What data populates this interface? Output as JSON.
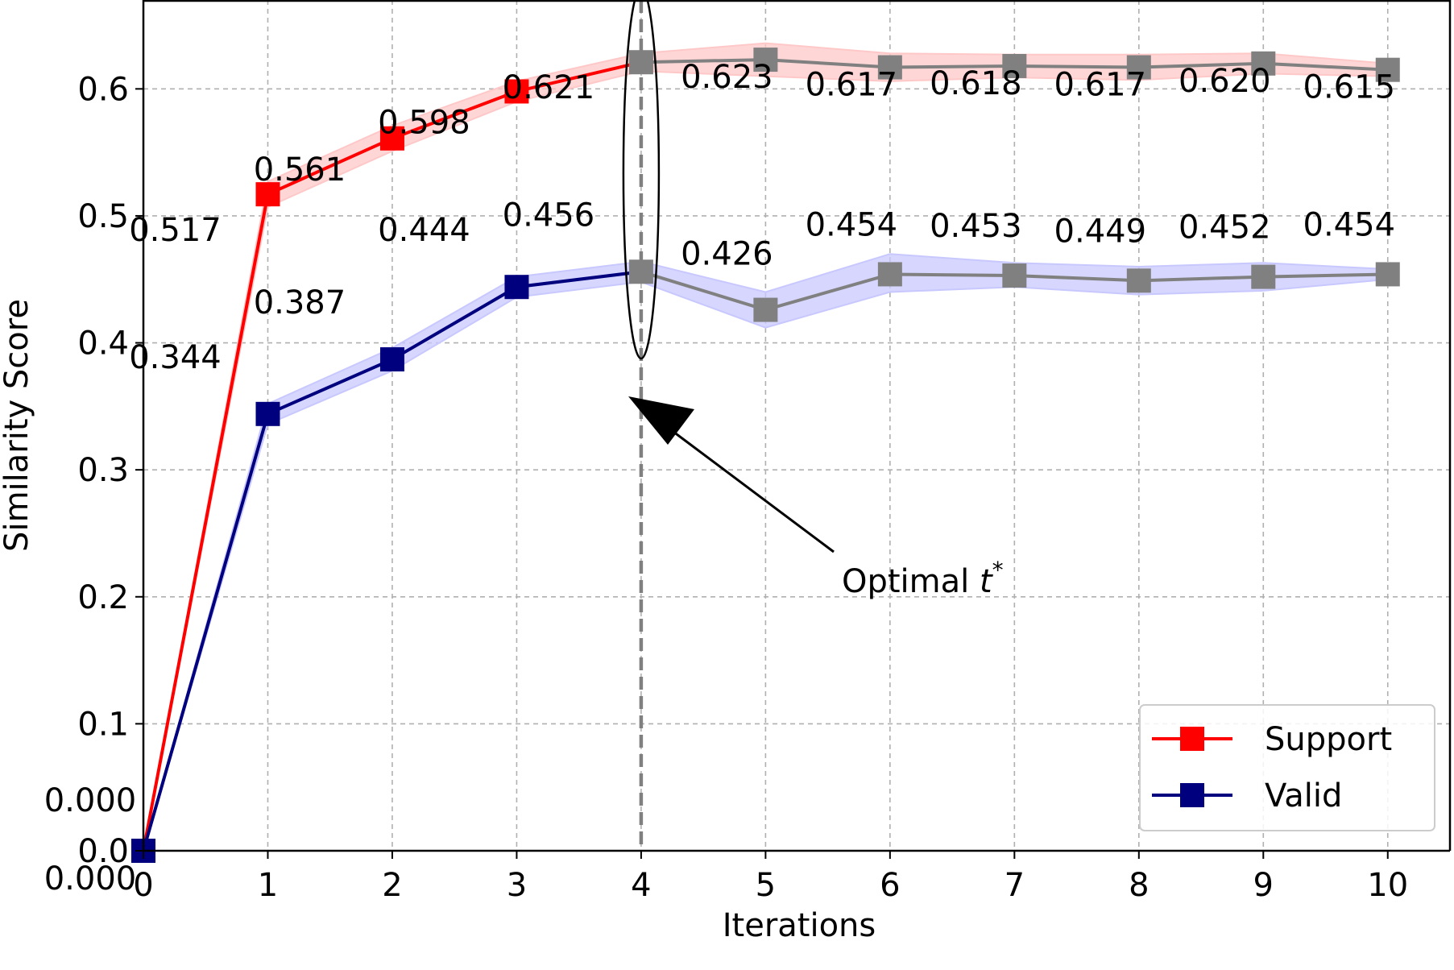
{
  "chart_data": {
    "type": "line",
    "title": "",
    "xlabel": "Iterations",
    "ylabel": "Similarity Score",
    "x": [
      0,
      1,
      2,
      3,
      4,
      5,
      6,
      7,
      8,
      9,
      10
    ],
    "xlim": [
      0,
      10.5
    ],
    "ylim": [
      0,
      0.67
    ],
    "xticks": [
      "0",
      "1",
      "2",
      "3",
      "4",
      "5",
      "6",
      "7",
      "8",
      "9",
      "10"
    ],
    "yticks": [
      "0.0",
      "0.1",
      "0.2",
      "0.3",
      "0.4",
      "0.5",
      "0.6"
    ],
    "ytick_values": [
      0,
      0.1,
      0.2,
      0.3,
      0.4,
      0.5,
      0.6
    ],
    "grid": true,
    "legend_position": "bottom-right",
    "series": [
      {
        "name": "Support",
        "color": "#ff0000",
        "band_color": "#ffc8c8",
        "values": [
          0.0,
          0.517,
          0.561,
          0.598,
          0.621,
          0.623,
          0.617,
          0.618,
          0.617,
          0.62,
          0.615
        ],
        "band_upper": [
          0.0,
          0.527,
          0.571,
          0.606,
          0.628,
          0.636,
          0.628,
          0.627,
          0.627,
          0.628,
          0.62
        ],
        "band_lower": [
          0.0,
          0.507,
          0.551,
          0.59,
          0.614,
          0.61,
          0.606,
          0.609,
          0.607,
          0.612,
          0.61
        ],
        "labels": [
          "0.000",
          "0.517",
          "0.561",
          "0.598",
          "0.621",
          "0.623",
          "0.617",
          "0.618",
          "0.617",
          "0.620",
          "0.615"
        ]
      },
      {
        "name": "Valid",
        "color": "#00007f",
        "band_color": "#c8c8ff",
        "values": [
          0.0,
          0.344,
          0.387,
          0.444,
          0.456,
          0.426,
          0.454,
          0.453,
          0.449,
          0.452,
          0.454
        ],
        "band_upper": [
          0.0,
          0.352,
          0.396,
          0.452,
          0.464,
          0.44,
          0.47,
          0.463,
          0.46,
          0.463,
          0.458
        ],
        "band_lower": [
          0.0,
          0.336,
          0.378,
          0.436,
          0.448,
          0.412,
          0.44,
          0.444,
          0.438,
          0.441,
          0.45
        ],
        "labels": [
          "0.000",
          "0.344",
          "0.387",
          "0.444",
          "0.456",
          "0.426",
          "0.454",
          "0.453",
          "0.449",
          "0.452",
          "0.454"
        ]
      }
    ],
    "after_optimal_color": "#808080",
    "optimal_iteration": 4,
    "annotation": {
      "text": "Optimal ",
      "math": "t",
      "superscript": "*"
    }
  }
}
